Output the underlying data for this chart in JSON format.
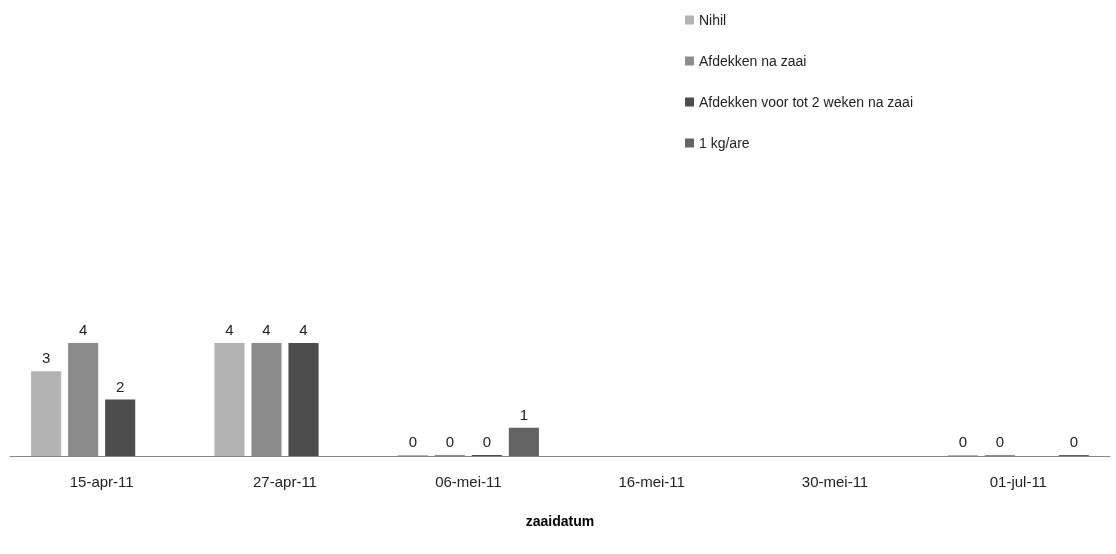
{
  "chart_data": {
    "type": "bar",
    "xlabel": "zaaidatum",
    "data_labels": true,
    "categories": [
      "15-apr-11",
      "27-apr-11",
      "06-mei-11",
      "16-mei-11",
      "30-mei-11",
      "01-jul-11"
    ],
    "series": [
      {
        "name": "Nihil",
        "color": "#b3b3b3",
        "values": [
          3,
          4,
          0,
          null,
          null,
          0
        ]
      },
      {
        "name": "Afdekken na zaai",
        "color": "#8c8c8c",
        "values": [
          4,
          4,
          0,
          null,
          null,
          0
        ]
      },
      {
        "name": "Afdekken voor tot 2 weken na zaai",
        "color": "#4d4d4d",
        "values": [
          2,
          4,
          0,
          null,
          null,
          null
        ]
      },
      {
        "name": "1 kg/are",
        "color": "#636363",
        "values": [
          null,
          null,
          1,
          null,
          null,
          0
        ]
      }
    ],
    "legend": "top right",
    "grid": false,
    "tick_labels": "x"
  }
}
